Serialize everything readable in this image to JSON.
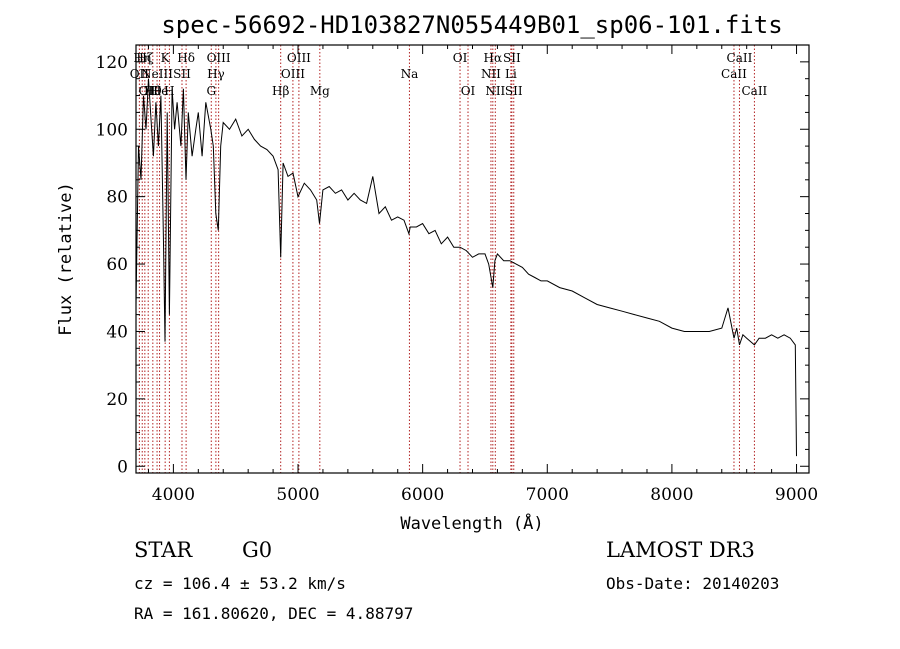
{
  "chart_data": {
    "type": "line",
    "title": "spec-56692-HD103827N055449B01_sp06-101.fits",
    "xlabel": "Wavelength (Å)",
    "ylabel": "Flux (relative)",
    "xlim": [
      3700,
      9100
    ],
    "ylim": [
      -2,
      125
    ],
    "xticks": [
      4000,
      5000,
      6000,
      7000,
      8000,
      9000
    ],
    "yticks": [
      0,
      20,
      40,
      60,
      80,
      100,
      120
    ],
    "grid": false,
    "line_color": "#000000",
    "marker_color": "#b22222",
    "series": [
      {
        "name": "spectrum",
        "x": [
          3700,
          3720,
          3740,
          3760,
          3780,
          3800,
          3820,
          3840,
          3860,
          3880,
          3900,
          3920,
          3933,
          3950,
          3968,
          3990,
          4010,
          4030,
          4060,
          4080,
          4101,
          4120,
          4150,
          4180,
          4200,
          4230,
          4260,
          4300,
          4320,
          4340,
          4360,
          4380,
          4400,
          4450,
          4500,
          4550,
          4600,
          4650,
          4700,
          4750,
          4800,
          4840,
          4861,
          4880,
          4920,
          4960,
          5000,
          5050,
          5100,
          5150,
          5172,
          5200,
          5250,
          5300,
          5350,
          5400,
          5450,
          5500,
          5550,
          5600,
          5650,
          5700,
          5750,
          5800,
          5850,
          5890,
          5900,
          5950,
          6000,
          6050,
          6100,
          6150,
          6200,
          6250,
          6300,
          6350,
          6400,
          6450,
          6500,
          6530,
          6563,
          6580,
          6600,
          6650,
          6700,
          6750,
          6800,
          6850,
          6900,
          6950,
          7000,
          7100,
          7200,
          7300,
          7400,
          7500,
          7600,
          7700,
          7800,
          7900,
          8000,
          8100,
          8200,
          8300,
          8400,
          8450,
          8498,
          8520,
          8542,
          8570,
          8600,
          8662,
          8700,
          8750,
          8800,
          8850,
          8900,
          8950,
          8990,
          9000
        ],
        "y": [
          48,
          95,
          85,
          110,
          100,
          115,
          103,
          92,
          108,
          95,
          110,
          68,
          37,
          105,
          45,
          112,
          100,
          108,
          95,
          112,
          85,
          105,
          92,
          100,
          105,
          92,
          108,
          100,
          95,
          75,
          70,
          95,
          102,
          100,
          103,
          98,
          100,
          97,
          95,
          94,
          92,
          88,
          62,
          90,
          86,
          87,
          80,
          84,
          82,
          79,
          72,
          82,
          83,
          81,
          82,
          79,
          81,
          79,
          78,
          86,
          75,
          77,
          73,
          74,
          73,
          69,
          71,
          71,
          72,
          69,
          70,
          66,
          68,
          65,
          65,
          64,
          62,
          63,
          63,
          60,
          53,
          61,
          63,
          61,
          61,
          60,
          59,
          57,
          56,
          55,
          55,
          53,
          52,
          50,
          48,
          47,
          46,
          45,
          44,
          43,
          41,
          40,
          40,
          40,
          41,
          47,
          38,
          41,
          36,
          39,
          38,
          36,
          38,
          38,
          39,
          38,
          39,
          38,
          36,
          3
        ]
      }
    ],
    "line_markers": [
      {
        "wavelength": 3727,
        "label": "OII",
        "row": 2
      },
      {
        "wavelength": 3750,
        "label": "Hη",
        "row": 1
      },
      {
        "wavelength": 3771,
        "label": "Hζ",
        "row": 1
      },
      {
        "wavelength": 3798,
        "label": "OII",
        "row": 3
      },
      {
        "wavelength": 3835,
        "label": "Hθ",
        "row": 3
      },
      {
        "wavelength": 3869,
        "label": "NeIII",
        "row": 2
      },
      {
        "wavelength": 3889,
        "label": "He",
        "row": 3
      },
      {
        "wavelength": 3934,
        "label": "K",
        "row": 1
      },
      {
        "wavelength": 3968,
        "label": "H",
        "row": 3
      },
      {
        "wavelength": 4069,
        "label": "SII",
        "row": 2
      },
      {
        "wavelength": 4102,
        "label": "Hδ",
        "row": 1
      },
      {
        "wavelength": 4304,
        "label": "G",
        "row": 3
      },
      {
        "wavelength": 4341,
        "label": "Hγ",
        "row": 2
      },
      {
        "wavelength": 4363,
        "label": "OIII",
        "row": 1
      },
      {
        "wavelength": 4861,
        "label": "Hβ",
        "row": 3
      },
      {
        "wavelength": 4959,
        "label": "OIII",
        "row": 2
      },
      {
        "wavelength": 5007,
        "label": "OIII",
        "row": 1
      },
      {
        "wavelength": 5175,
        "label": "Mg",
        "row": 3
      },
      {
        "wavelength": 5894,
        "label": "Na",
        "row": 2
      },
      {
        "wavelength": 6300,
        "label": "OI",
        "row": 1
      },
      {
        "wavelength": 6364,
        "label": "OI",
        "row": 3
      },
      {
        "wavelength": 6548,
        "label": "NII",
        "row": 2
      },
      {
        "wavelength": 6563,
        "label": "Hα",
        "row": 1
      },
      {
        "wavelength": 6583,
        "label": "NII",
        "row": 3
      },
      {
        "wavelength": 6708,
        "label": "Li",
        "row": 2
      },
      {
        "wavelength": 6716,
        "label": "SII",
        "row": 1
      },
      {
        "wavelength": 6731,
        "label": "SII",
        "row": 3
      },
      {
        "wavelength": 8498,
        "label": "CaII",
        "row": 2
      },
      {
        "wavelength": 8542,
        "label": "CaII",
        "row": 1
      },
      {
        "wavelength": 8662,
        "label": "CaII",
        "row": 3
      }
    ]
  },
  "info": {
    "object_class": "STAR",
    "subclass": "G0",
    "survey": "LAMOST DR3",
    "redshift": "cz = 106.4 ± 53.2 km/s",
    "obs_date": "Obs-Date: 20140203",
    "coords": "RA = 161.80620, DEC =   4.88797"
  }
}
